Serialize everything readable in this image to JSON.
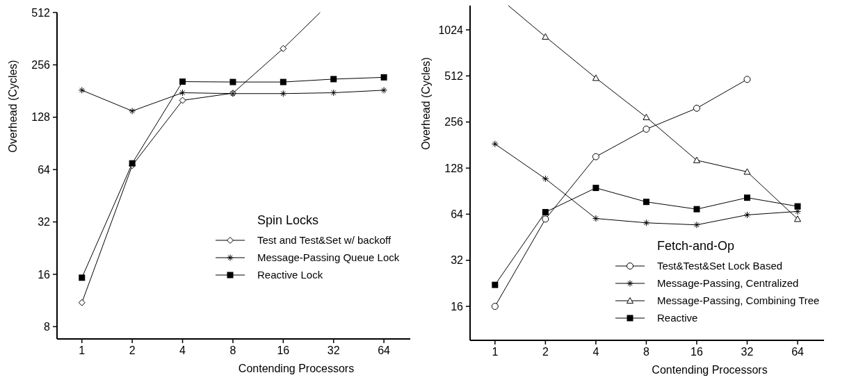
{
  "chart_data": [
    {
      "type": "line",
      "xlabel": "Contending Processors",
      "ylabel": "Overhead (Cycles)",
      "log": "xy",
      "xlim": [
        0.71,
        92
      ],
      "xticks": [
        1,
        2,
        4,
        8,
        16,
        32,
        64
      ],
      "ylim": [
        6.8,
        512
      ],
      "yticks": [
        8,
        16,
        32,
        64,
        128,
        256,
        512
      ],
      "grid": false,
      "legend": "bottom right",
      "legend_title": "Spin Locks",
      "x": [
        1,
        2,
        4,
        8,
        16,
        32,
        64
      ],
      "series": [
        {
          "name": "Test and Test&Set w/ backoff",
          "color": "#000000",
          "marker": "diamond",
          "x": [
            1,
            2,
            4,
            8,
            16,
            26.6
          ],
          "values": [
            11,
            67.6,
            160,
            176,
            318,
            512
          ]
        },
        {
          "name": "Message-Passing Queue Lock",
          "color": "#000000",
          "marker": "cross",
          "values": [
            183,
            139,
            177,
            175,
            175,
            177,
            183
          ]
        },
        {
          "name": "Reactive Lock",
          "color": "#000000",
          "marker": "square",
          "values": [
            15.3,
            69.5,
            205,
            204,
            204,
            212,
            217
          ]
        }
      ]
    },
    {
      "type": "line",
      "xlabel": "Contending Processors",
      "ylabel": "Overhead (Cycles)",
      "log": "xy",
      "xlim": [
        0.71,
        92
      ],
      "xticks": [
        1,
        2,
        4,
        8,
        16,
        32,
        64
      ],
      "ylim": [
        9.6,
        1475
      ],
      "yticks": [
        16,
        32,
        64,
        128,
        256,
        512,
        1024
      ],
      "grid": false,
      "legend": "bottom right",
      "legend_title": "Fetch-and-Op",
      "x": [
        1,
        2,
        4,
        8,
        16,
        32,
        64
      ],
      "series": [
        {
          "name": "Test&Test&Set Lock Based",
          "color": "#000000",
          "marker": "circle",
          "x": [
            1,
            2,
            4,
            8,
            16,
            32
          ],
          "values": [
            16,
            59.5,
            152,
            230,
            315,
            486
          ]
        },
        {
          "name": "Message-Passing, Centralized",
          "color": "#000000",
          "marker": "cross",
          "values": [
            184,
            109,
            60,
            56.2,
            54.5,
            63.3,
            66.7
          ]
        },
        {
          "name": "Message-Passing, Combining Tree",
          "color": "#000000",
          "marker": "triangle",
          "x": [
            1.2,
            2,
            4,
            8,
            16,
            32,
            64
          ],
          "values": [
            1475,
            923,
            496,
            275,
            144,
            121,
            59.5
          ]
        },
        {
          "name": "Reactive",
          "color": "#000000",
          "marker": "square",
          "values": [
            22.1,
            66,
            95,
            77,
            69,
            82,
            72
          ]
        }
      ]
    }
  ]
}
